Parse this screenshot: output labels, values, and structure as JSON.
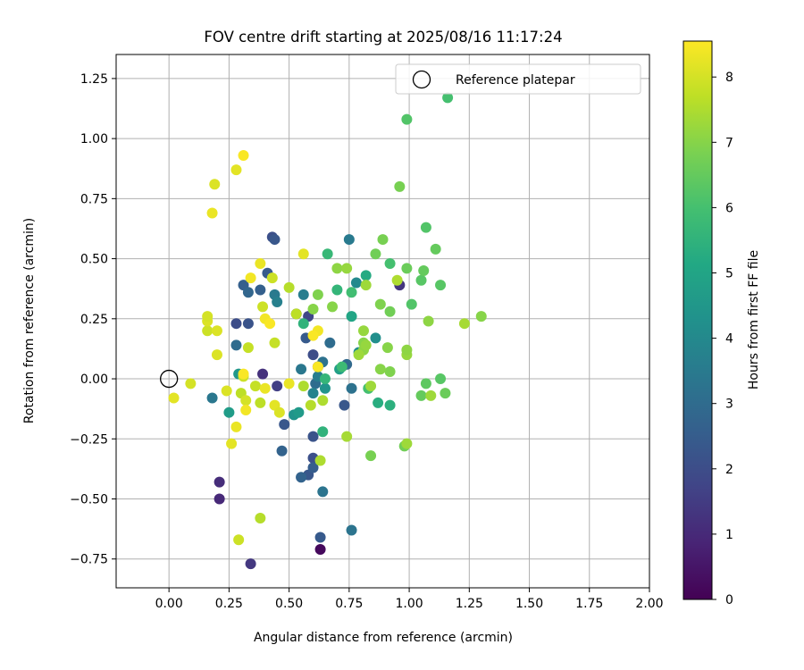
{
  "chart_data": {
    "type": "scatter",
    "title": "FOV centre drift starting at 2025/08/16 11:17:24",
    "xlabel": "Angular distance from reference (arcmin)",
    "ylabel": "Rotation from reference (arcmin)",
    "xlim": [
      -0.22,
      2.0
    ],
    "ylim": [
      -0.87,
      1.35
    ],
    "xticks": [
      "0.00",
      "0.25",
      "0.50",
      "0.75",
      "1.00",
      "1.25",
      "1.50",
      "1.75",
      "2.00"
    ],
    "yticks": [
      "-0.75",
      "-0.50",
      "-0.25",
      "0.00",
      "0.25",
      "0.50",
      "0.75",
      "1.00",
      "1.25"
    ],
    "grid": true,
    "legend": {
      "position": "top-right",
      "label": "Reference platepar"
    },
    "reference_point": {
      "x": 0.0,
      "y": 0.0
    },
    "colorbar": {
      "label": "Hours from first FF file",
      "min": 0,
      "max": 8.55,
      "ticks": [
        "0",
        "1",
        "2",
        "3",
        "4",
        "5",
        "6",
        "7",
        "8"
      ],
      "colormap": "viridis"
    },
    "points": [
      {
        "x": 0.63,
        "y": -0.71,
        "h": 0.2
      },
      {
        "x": 0.34,
        "y": -0.77,
        "h": 1.4
      },
      {
        "x": 0.21,
        "y": -0.43,
        "h": 1.1
      },
      {
        "x": 0.21,
        "y": -0.5,
        "h": 1.0
      },
      {
        "x": 0.39,
        "y": 0.02,
        "h": 1.2
      },
      {
        "x": 0.45,
        "y": -0.03,
        "h": 1.6
      },
      {
        "x": 0.96,
        "y": 0.39,
        "h": 1.3
      },
      {
        "x": 0.62,
        "y": 0.05,
        "h": 1.0
      },
      {
        "x": 0.58,
        "y": 0.26,
        "h": 1.8
      },
      {
        "x": 0.28,
        "y": 0.23,
        "h": 2.0
      },
      {
        "x": 0.33,
        "y": 0.23,
        "h": 2.2
      },
      {
        "x": 0.6,
        "y": 0.1,
        "h": 2.0
      },
      {
        "x": 0.6,
        "y": -0.24,
        "h": 2.2
      },
      {
        "x": 0.6,
        "y": -0.33,
        "h": 2.1
      },
      {
        "x": 0.58,
        "y": -0.4,
        "h": 2.3
      },
      {
        "x": 0.6,
        "y": -0.37,
        "h": 2.5
      },
      {
        "x": 0.73,
        "y": -0.11,
        "h": 2.3
      },
      {
        "x": 0.53,
        "y": 0.27,
        "h": 2.1
      },
      {
        "x": 0.57,
        "y": 0.17,
        "h": 2.4
      },
      {
        "x": 0.63,
        "y": -0.66,
        "h": 2.4
      },
      {
        "x": 0.43,
        "y": 0.59,
        "h": 2.1
      },
      {
        "x": 0.41,
        "y": 0.44,
        "h": 2.4
      },
      {
        "x": 0.31,
        "y": 0.39,
        "h": 2.6
      },
      {
        "x": 0.33,
        "y": 0.36,
        "h": 2.8
      },
      {
        "x": 0.38,
        "y": 0.37,
        "h": 2.6
      },
      {
        "x": 0.44,
        "y": 0.58,
        "h": 2.3
      },
      {
        "x": 0.48,
        "y": -0.19,
        "h": 2.3
      },
      {
        "x": 0.47,
        "y": -0.3,
        "h": 2.7
      },
      {
        "x": 0.55,
        "y": -0.41,
        "h": 2.7
      },
      {
        "x": 0.28,
        "y": 0.14,
        "h": 3.0
      },
      {
        "x": 0.18,
        "y": -0.08,
        "h": 3.4
      },
      {
        "x": 0.61,
        "y": -0.02,
        "h": 3.0
      },
      {
        "x": 0.55,
        "y": 0.04,
        "h": 3.4
      },
      {
        "x": 0.62,
        "y": 0.01,
        "h": 3.6
      },
      {
        "x": 0.64,
        "y": 0.07,
        "h": 3.2
      },
      {
        "x": 0.67,
        "y": 0.15,
        "h": 3.0
      },
      {
        "x": 0.74,
        "y": 0.06,
        "h": 2.9
      },
      {
        "x": 0.76,
        "y": -0.04,
        "h": 3.2
      },
      {
        "x": 0.76,
        "y": -0.63,
        "h": 3.3
      },
      {
        "x": 0.64,
        "y": -0.47,
        "h": 3.3
      },
      {
        "x": 0.56,
        "y": 0.35,
        "h": 3.6
      },
      {
        "x": 0.44,
        "y": 0.35,
        "h": 3.5
      },
      {
        "x": 0.45,
        "y": 0.32,
        "h": 3.7
      },
      {
        "x": 0.6,
        "y": -0.06,
        "h": 3.8
      },
      {
        "x": 0.75,
        "y": 0.58,
        "h": 3.5
      },
      {
        "x": 0.78,
        "y": 0.4,
        "h": 4.0
      },
      {
        "x": 0.79,
        "y": 0.11,
        "h": 4.1
      },
      {
        "x": 0.86,
        "y": 0.17,
        "h": 4.2
      },
      {
        "x": 0.29,
        "y": 0.02,
        "h": 4.5
      },
      {
        "x": 0.25,
        "y": -0.14,
        "h": 4.7
      },
      {
        "x": 0.52,
        "y": -0.15,
        "h": 4.4
      },
      {
        "x": 0.54,
        "y": -0.14,
        "h": 4.6
      },
      {
        "x": 0.65,
        "y": -0.04,
        "h": 4.4
      },
      {
        "x": 0.71,
        "y": 0.04,
        "h": 4.8
      },
      {
        "x": 0.76,
        "y": 0.26,
        "h": 5.0
      },
      {
        "x": 0.82,
        "y": 0.43,
        "h": 5.2
      },
      {
        "x": 0.83,
        "y": -0.04,
        "h": 5.2
      },
      {
        "x": 0.87,
        "y": -0.1,
        "h": 5.3
      },
      {
        "x": 0.92,
        "y": -0.11,
        "h": 5.4
      },
      {
        "x": 0.64,
        "y": -0.22,
        "h": 5.5
      },
      {
        "x": 0.56,
        "y": 0.23,
        "h": 5.5
      },
      {
        "x": 0.65,
        "y": 0.0,
        "h": 5.6
      },
      {
        "x": 0.66,
        "y": 0.52,
        "h": 5.7
      },
      {
        "x": 0.7,
        "y": 0.37,
        "h": 5.6
      },
      {
        "x": 0.72,
        "y": 0.05,
        "h": 5.8
      },
      {
        "x": 0.76,
        "y": 0.36,
        "h": 5.9
      },
      {
        "x": 0.83,
        "y": -0.04,
        "h": 6.0
      },
      {
        "x": 0.92,
        "y": 0.48,
        "h": 6.0
      },
      {
        "x": 0.99,
        "y": 1.08,
        "h": 6.2
      },
      {
        "x": 1.16,
        "y": 1.17,
        "h": 6.0
      },
      {
        "x": 1.07,
        "y": 0.63,
        "h": 6.2
      },
      {
        "x": 1.05,
        "y": 0.41,
        "h": 6.3
      },
      {
        "x": 1.13,
        "y": 0.39,
        "h": 6.3
      },
      {
        "x": 1.06,
        "y": 0.45,
        "h": 6.5
      },
      {
        "x": 1.01,
        "y": 0.31,
        "h": 6.2
      },
      {
        "x": 1.07,
        "y": -0.02,
        "h": 6.4
      },
      {
        "x": 1.05,
        "y": -0.07,
        "h": 6.5
      },
      {
        "x": 1.13,
        "y": 0.0,
        "h": 6.3
      },
      {
        "x": 1.15,
        "y": -0.06,
        "h": 6.6
      },
      {
        "x": 1.11,
        "y": 0.54,
        "h": 6.5
      },
      {
        "x": 0.99,
        "y": 0.46,
        "h": 6.6
      },
      {
        "x": 0.98,
        "y": -0.28,
        "h": 6.7
      },
      {
        "x": 0.96,
        "y": 0.8,
        "h": 6.8
      },
      {
        "x": 0.89,
        "y": 0.58,
        "h": 6.8
      },
      {
        "x": 0.86,
        "y": 0.52,
        "h": 6.7
      },
      {
        "x": 0.88,
        "y": 0.31,
        "h": 6.9
      },
      {
        "x": 0.92,
        "y": 0.28,
        "h": 6.7
      },
      {
        "x": 0.91,
        "y": 0.13,
        "h": 7.0
      },
      {
        "x": 0.92,
        "y": 0.03,
        "h": 6.9
      },
      {
        "x": 0.88,
        "y": 0.04,
        "h": 7.0
      },
      {
        "x": 0.84,
        "y": -0.32,
        "h": 6.8
      },
      {
        "x": 0.62,
        "y": 0.35,
        "h": 6.9
      },
      {
        "x": 0.6,
        "y": 0.29,
        "h": 7.0
      },
      {
        "x": 0.68,
        "y": 0.3,
        "h": 7.0
      },
      {
        "x": 0.7,
        "y": 0.46,
        "h": 7.1
      },
      {
        "x": 0.74,
        "y": 0.46,
        "h": 7.2
      },
      {
        "x": 0.81,
        "y": 0.2,
        "h": 7.2
      },
      {
        "x": 0.81,
        "y": 0.15,
        "h": 7.0
      },
      {
        "x": 0.81,
        "y": 0.12,
        "h": 7.1
      },
      {
        "x": 0.82,
        "y": 0.14,
        "h": 7.2
      },
      {
        "x": 0.79,
        "y": 0.1,
        "h": 7.3
      },
      {
        "x": 0.84,
        "y": -0.03,
        "h": 7.3
      },
      {
        "x": 0.74,
        "y": -0.24,
        "h": 7.4
      },
      {
        "x": 1.08,
        "y": 0.24,
        "h": 7.1
      },
      {
        "x": 1.23,
        "y": 0.23,
        "h": 7.4
      },
      {
        "x": 1.3,
        "y": 0.26,
        "h": 7.0
      },
      {
        "x": 0.99,
        "y": -0.27,
        "h": 7.3
      },
      {
        "x": 0.99,
        "y": 0.1,
        "h": 7.2
      },
      {
        "x": 0.99,
        "y": 0.12,
        "h": 7.1
      },
      {
        "x": 1.09,
        "y": -0.07,
        "h": 7.3
      },
      {
        "x": 0.95,
        "y": 0.41,
        "h": 7.5
      },
      {
        "x": 0.82,
        "y": 0.39,
        "h": 7.3
      },
      {
        "x": 0.63,
        "y": -0.34,
        "h": 7.5
      },
      {
        "x": 0.64,
        "y": -0.09,
        "h": 7.5
      },
      {
        "x": 0.59,
        "y": -0.11,
        "h": 7.6
      },
      {
        "x": 0.56,
        "y": -0.03,
        "h": 7.5
      },
      {
        "x": 0.5,
        "y": 0.38,
        "h": 7.6
      },
      {
        "x": 0.53,
        "y": 0.27,
        "h": 7.7
      },
      {
        "x": 0.44,
        "y": 0.15,
        "h": 7.8
      },
      {
        "x": 0.43,
        "y": 0.42,
        "h": 7.9
      },
      {
        "x": 0.39,
        "y": 0.3,
        "h": 7.9
      },
      {
        "x": 0.33,
        "y": 0.13,
        "h": 7.8
      },
      {
        "x": 0.31,
        "y": 0.01,
        "h": 7.9
      },
      {
        "x": 0.3,
        "y": -0.06,
        "h": 7.7
      },
      {
        "x": 0.36,
        "y": -0.03,
        "h": 7.8
      },
      {
        "x": 0.38,
        "y": -0.1,
        "h": 7.7
      },
      {
        "x": 0.38,
        "y": -0.58,
        "h": 7.6
      },
      {
        "x": 0.29,
        "y": -0.67,
        "h": 7.9
      },
      {
        "x": 0.32,
        "y": -0.09,
        "h": 8.0
      },
      {
        "x": 0.26,
        "y": -0.27,
        "h": 8.2
      },
      {
        "x": 0.28,
        "y": -0.2,
        "h": 8.3
      },
      {
        "x": 0.24,
        "y": -0.05,
        "h": 8.1
      },
      {
        "x": 0.16,
        "y": 0.2,
        "h": 7.9
      },
      {
        "x": 0.16,
        "y": 0.24,
        "h": 8.1
      },
      {
        "x": 0.16,
        "y": 0.26,
        "h": 8.0
      },
      {
        "x": 0.2,
        "y": 0.2,
        "h": 8.1
      },
      {
        "x": 0.2,
        "y": 0.1,
        "h": 8.1
      },
      {
        "x": 0.09,
        "y": -0.02,
        "h": 8.0
      },
      {
        "x": 0.02,
        "y": -0.08,
        "h": 8.2
      },
      {
        "x": 0.18,
        "y": 0.69,
        "h": 8.3
      },
      {
        "x": 0.19,
        "y": 0.81,
        "h": 8.1
      },
      {
        "x": 0.28,
        "y": 0.87,
        "h": 8.2
      },
      {
        "x": 0.31,
        "y": 0.93,
        "h": 8.5
      },
      {
        "x": 0.34,
        "y": 0.42,
        "h": 8.4
      },
      {
        "x": 0.38,
        "y": 0.48,
        "h": 8.3
      },
      {
        "x": 0.4,
        "y": 0.25,
        "h": 8.4
      },
      {
        "x": 0.42,
        "y": 0.23,
        "h": 8.5
      },
      {
        "x": 0.31,
        "y": 0.02,
        "h": 8.5
      },
      {
        "x": 0.32,
        "y": -0.13,
        "h": 8.4
      },
      {
        "x": 0.4,
        "y": -0.04,
        "h": 8.3
      },
      {
        "x": 0.44,
        "y": -0.11,
        "h": 8.2
      },
      {
        "x": 0.46,
        "y": -0.14,
        "h": 8.1
      },
      {
        "x": 0.5,
        "y": -0.02,
        "h": 8.3
      },
      {
        "x": 0.56,
        "y": 0.52,
        "h": 8.2
      },
      {
        "x": 0.62,
        "y": 0.2,
        "h": 8.4
      },
      {
        "x": 0.6,
        "y": 0.18,
        "h": 8.5
      },
      {
        "x": 0.62,
        "y": 0.05,
        "h": 8.5
      }
    ]
  }
}
